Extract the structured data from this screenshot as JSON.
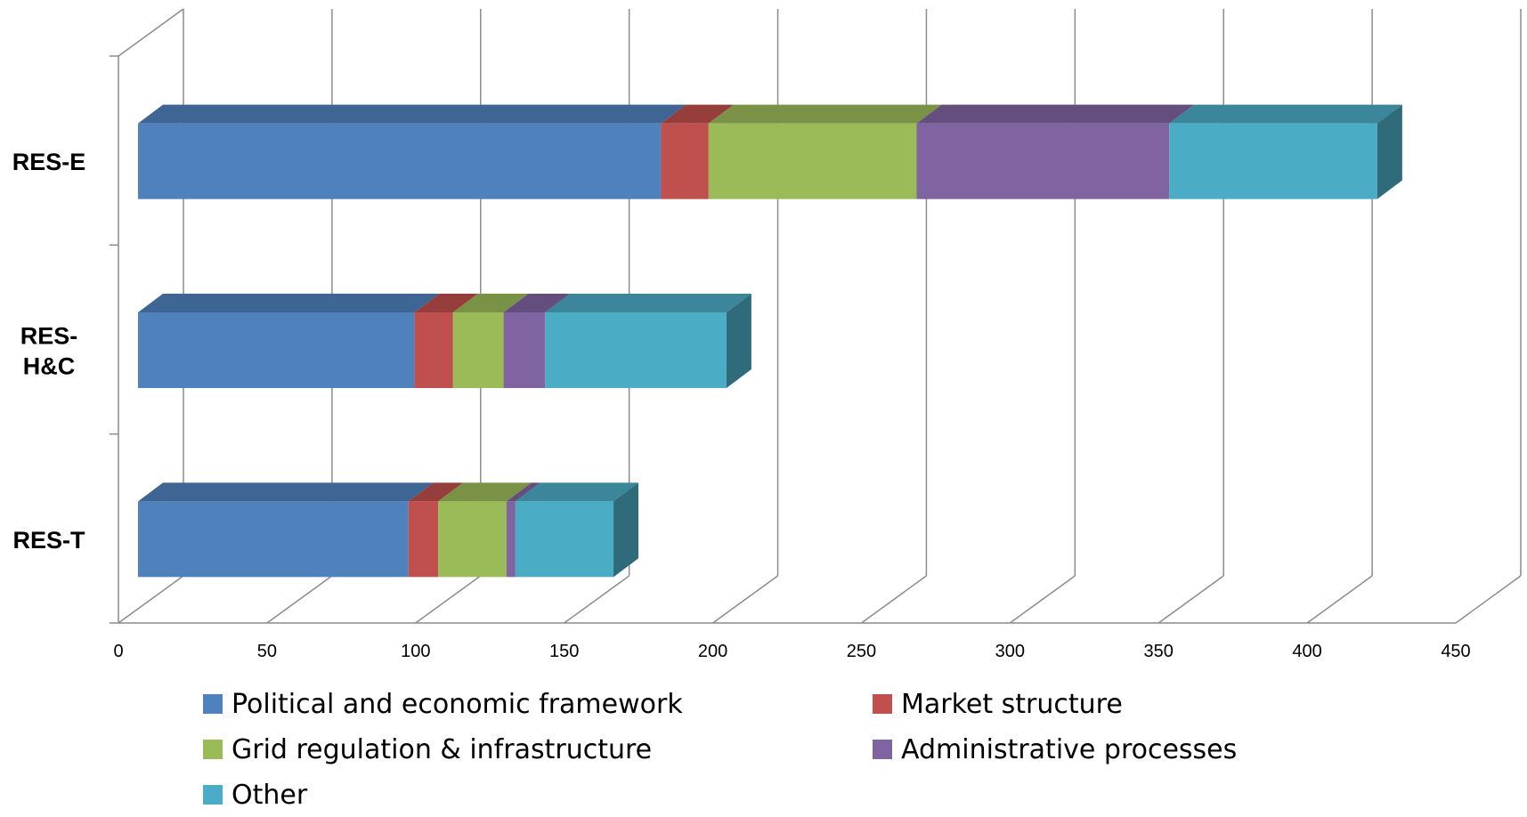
{
  "chart_data": {
    "type": "bar",
    "orientation": "horizontal",
    "stacked": true,
    "three_d": true,
    "title": "",
    "xlabel": "",
    "ylabel": "",
    "xlim": [
      0,
      450
    ],
    "x_ticks": [
      0,
      50,
      100,
      150,
      200,
      250,
      300,
      350,
      400,
      450
    ],
    "grid": true,
    "legend_position": "bottom",
    "categories": [
      {
        "label_lines": [
          "RES-E"
        ]
      },
      {
        "label_lines": [
          "RES-",
          "H&C"
        ]
      },
      {
        "label_lines": [
          "RES-T"
        ]
      }
    ],
    "series": [
      {
        "name": "Political and economic framework",
        "color": "#4F81BD",
        "values": [
          176,
          93,
          91
        ]
      },
      {
        "name": "Market structure",
        "color": "#C0504D",
        "values": [
          16,
          13,
          10
        ]
      },
      {
        "name": "Grid regulation & infrastructure",
        "color": "#9BBB59",
        "values": [
          70,
          17,
          23
        ]
      },
      {
        "name": "Administrative processes",
        "color": "#8064A2",
        "values": [
          85,
          14,
          3
        ]
      },
      {
        "name": "Other",
        "color": "#4BACC6",
        "values": [
          70,
          61,
          33
        ]
      }
    ]
  }
}
